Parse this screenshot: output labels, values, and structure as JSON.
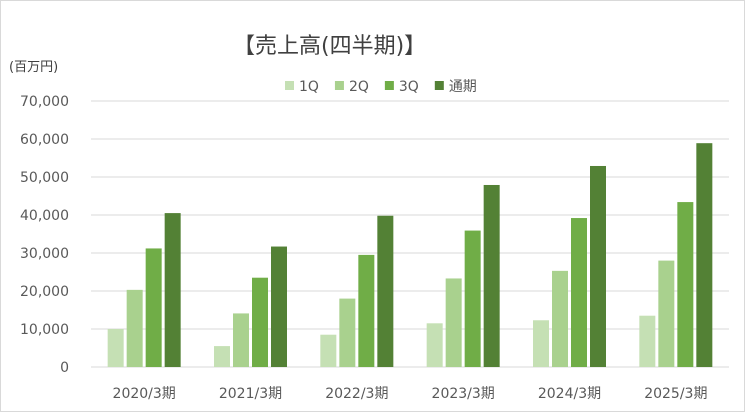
{
  "chart_data": {
    "type": "bar",
    "title": "【売上高(四半期)】",
    "unit_label": "(百万円)",
    "categories": [
      "2020/3期",
      "2021/3期",
      "2022/3期",
      "2023/3期",
      "2024/3期",
      "2025/3期"
    ],
    "series": [
      {
        "name": "1Q",
        "color": "#c5e0b4",
        "values": [
          10000,
          5500,
          8500,
          11500,
          12300,
          13500
        ]
      },
      {
        "name": "2Q",
        "color": "#a9d18e",
        "values": [
          20300,
          14100,
          18000,
          23300,
          25300,
          28000
        ]
      },
      {
        "name": "3Q",
        "color": "#70ad47",
        "values": [
          31200,
          23500,
          29500,
          35900,
          39200,
          43400
        ]
      },
      {
        "name": "通期",
        "color": "#538135",
        "values": [
          40500,
          31700,
          39800,
          47900,
          52900,
          58900
        ]
      }
    ],
    "y_ticks": [
      "0",
      "10,000",
      "20,000",
      "30,000",
      "40,000",
      "50,000",
      "60,000",
      "70,000"
    ],
    "ylim": [
      0,
      70000
    ],
    "grid": true,
    "legend_position": "top"
  }
}
